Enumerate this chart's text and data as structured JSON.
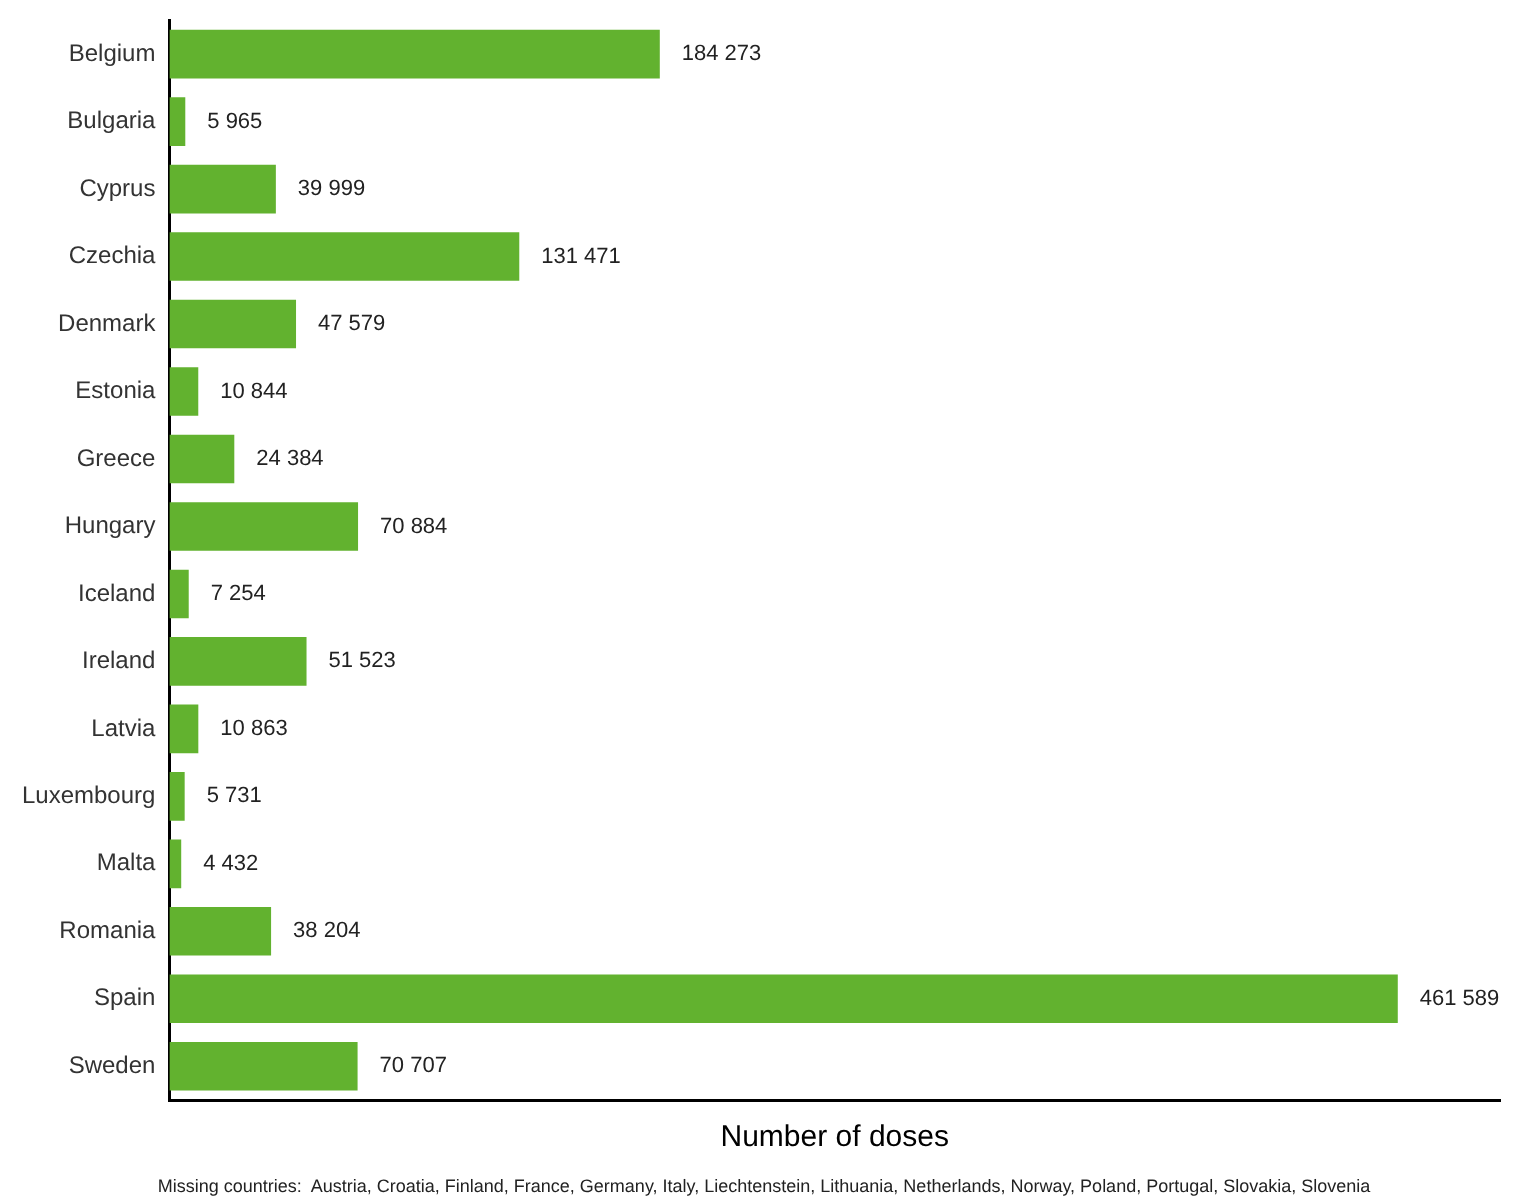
{
  "chart_data": {
    "type": "bar",
    "orientation": "horizontal",
    "xlabel": "Number of doses",
    "categories": [
      "Belgium",
      "Bulgaria",
      "Cyprus",
      "Czechia",
      "Denmark",
      "Estonia",
      "Greece",
      "Hungary",
      "Iceland",
      "Ireland",
      "Latvia",
      "Luxembourg",
      "Malta",
      "Romania",
      "Spain",
      "Sweden"
    ],
    "values": [
      184273,
      5965,
      39999,
      131471,
      47579,
      10844,
      24384,
      70884,
      7254,
      51523,
      10863,
      5731,
      4432,
      38204,
      461589,
      70707
    ],
    "value_labels": [
      "184 273",
      "5 965",
      "39 999",
      "131 471",
      "47 579",
      "10 844",
      "24 384",
      "70 884",
      "7 254",
      "51 523",
      "10 863",
      "5 731",
      "4 432",
      "38 204",
      "461 589",
      "70 707"
    ],
    "color": "#62b22f",
    "tick_labels": "y",
    "grid": false,
    "legend": false,
    "annotations": [
      "Missing countries:  Austria, Croatia, Finland, France, Germany, Italy, Liechtenstein, Lithuania, Netherlands, Norway, Poland, Portugal, Slovakia, Slovenia"
    ]
  }
}
